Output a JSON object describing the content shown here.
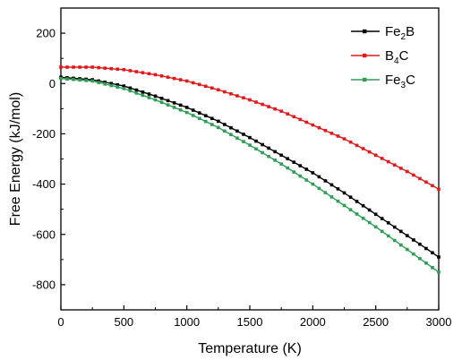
{
  "chart_data": {
    "type": "line",
    "title": "",
    "xlabel": "Temperature (K)",
    "ylabel": "Free Energy (kJ/mol)",
    "xlim": [
      0,
      3000
    ],
    "ylim": [
      -900,
      300
    ],
    "xticks": [
      0,
      500,
      1000,
      1500,
      2000,
      2500,
      3000
    ],
    "yticks": [
      -800,
      -600,
      -400,
      -200,
      0,
      200
    ],
    "grid": false,
    "legend_position": "top-right",
    "series": [
      {
        "name": "Fe2B",
        "label_parts": [
          "Fe",
          "2",
          "B"
        ],
        "color": "#000000",
        "marker": "square",
        "x": [
          0,
          250,
          500,
          750,
          1000,
          1250,
          1500,
          1750,
          2000,
          2250,
          2500,
          2750,
          3000
        ],
        "y": [
          25,
          15,
          -10,
          -50,
          -95,
          -150,
          -215,
          -285,
          -355,
          -435,
          -520,
          -605,
          -690
        ]
      },
      {
        "name": "B4C",
        "label_parts": [
          "B",
          "4",
          "C"
        ],
        "color": "#e0191b",
        "marker": "square",
        "x": [
          0,
          250,
          500,
          750,
          1000,
          1250,
          1500,
          1750,
          2000,
          2250,
          2500,
          2750,
          3000
        ],
        "y": [
          65,
          65,
          55,
          35,
          10,
          -25,
          -65,
          -110,
          -165,
          -220,
          -285,
          -350,
          -420
        ]
      },
      {
        "name": "Fe3C",
        "label_parts": [
          "Fe",
          "3",
          "C"
        ],
        "color": "#2e9d56",
        "marker": "square",
        "x": [
          0,
          250,
          500,
          750,
          1000,
          1250,
          1500,
          1750,
          2000,
          2250,
          2500,
          2750,
          3000
        ],
        "y": [
          20,
          10,
          -20,
          -65,
          -115,
          -175,
          -245,
          -320,
          -400,
          -485,
          -570,
          -660,
          -750
        ]
      }
    ]
  }
}
